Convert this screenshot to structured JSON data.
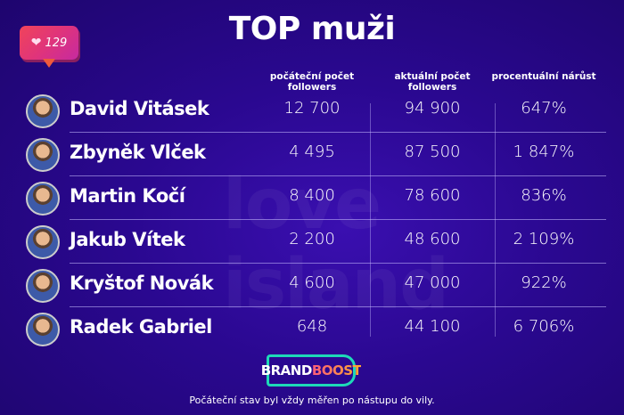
{
  "title": "TOP muži",
  "like_badge": {
    "icon": "heart-icon",
    "count": "129"
  },
  "watermark": "love island",
  "columns": [
    "počáteční počet followers",
    "aktuální počet followers",
    "procentuální nárůst"
  ],
  "rows": [
    {
      "name": "David Vitásek",
      "start": "12 700",
      "current": "94 900",
      "growth": "647%"
    },
    {
      "name": "Zbyněk Vlček",
      "start": "4 495",
      "current": "87 500",
      "growth": "1 847%"
    },
    {
      "name": "Martin Kočí",
      "start": "8 400",
      "current": "78 600",
      "growth": "836%"
    },
    {
      "name": "Jakub Vítek",
      "start": "2 200",
      "current": "48 600",
      "growth": "2 109%"
    },
    {
      "name": "Kryštof Novák",
      "start": "4 600",
      "current": "47 000",
      "growth": "922%"
    },
    {
      "name": "Radek Gabriel",
      "start": "648",
      "current": "44 100",
      "growth": "6 706%"
    }
  ],
  "logo": {
    "part1": "BRAND",
    "part2": "BOOST"
  },
  "footnote": "Počáteční stav byl vždy měřen po nástupu do vily.",
  "colors": {
    "background": "#2a0890",
    "accent": "#1ed9b8"
  }
}
